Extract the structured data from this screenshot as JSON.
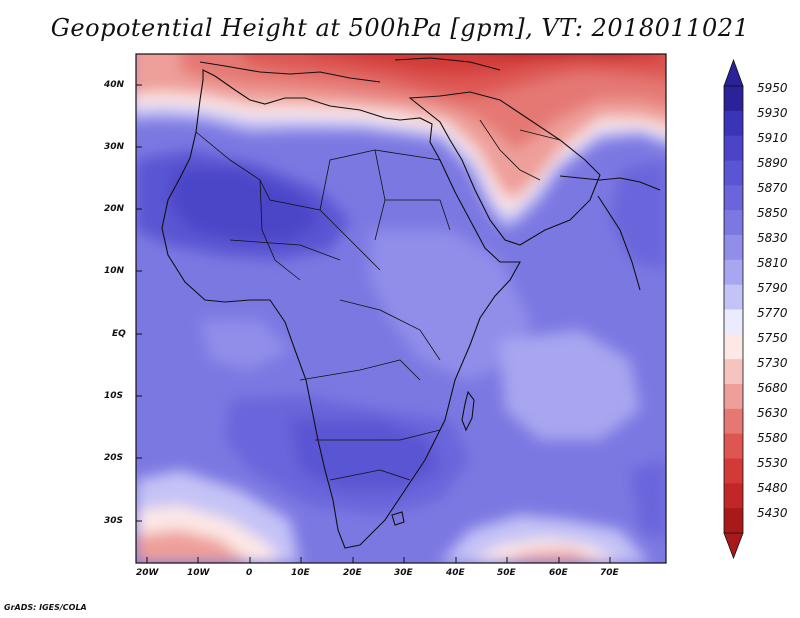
{
  "title": "Geopotential Height at 500hPa [gpm], VT: 2018011021",
  "credit": "GrADS: IGES/COLA",
  "lat_labels": [
    "40N",
    "30N",
    "20N",
    "10N",
    "EQ",
    "10S",
    "20S",
    "30S"
  ],
  "lon_labels": [
    "20W",
    "10W",
    "0",
    "10E",
    "20E",
    "30E",
    "40E",
    "50E",
    "60E",
    "70E"
  ],
  "colorbar": {
    "levels": [
      "5950",
      "5930",
      "5910",
      "5890",
      "5870",
      "5850",
      "5830",
      "5810",
      "5790",
      "5770",
      "5750",
      "5730",
      "5680",
      "5630",
      "5580",
      "5530",
      "5480",
      "5430"
    ],
    "colors": [
      "#2b2299",
      "#3a34b8",
      "#4b44c8",
      "#5a55d2",
      "#6a65db",
      "#7c78e2",
      "#918eea",
      "#a8a6f0",
      "#c4c3f6",
      "#eceaff",
      "#fde8e6",
      "#f6c3bf",
      "#ee9f9a",
      "#e57873",
      "#dd5652",
      "#d23a38",
      "#c12727",
      "#a81a1a"
    ]
  },
  "chart_data": {
    "type": "heatmap",
    "title": "Geopotential Height at 500hPa [gpm], VT: 2018011021",
    "variable": "geopotential height at 500 hPa",
    "units": "gpm",
    "valid_time": "2018011021",
    "lon_range": [
      -22,
      80
    ],
    "lat_range": [
      -37,
      45
    ],
    "color_levels": [
      5430,
      5480,
      5530,
      5580,
      5630,
      5680,
      5730,
      5750,
      5770,
      5790,
      5810,
      5830,
      5850,
      5870,
      5890,
      5910,
      5930,
      5950
    ]
  }
}
